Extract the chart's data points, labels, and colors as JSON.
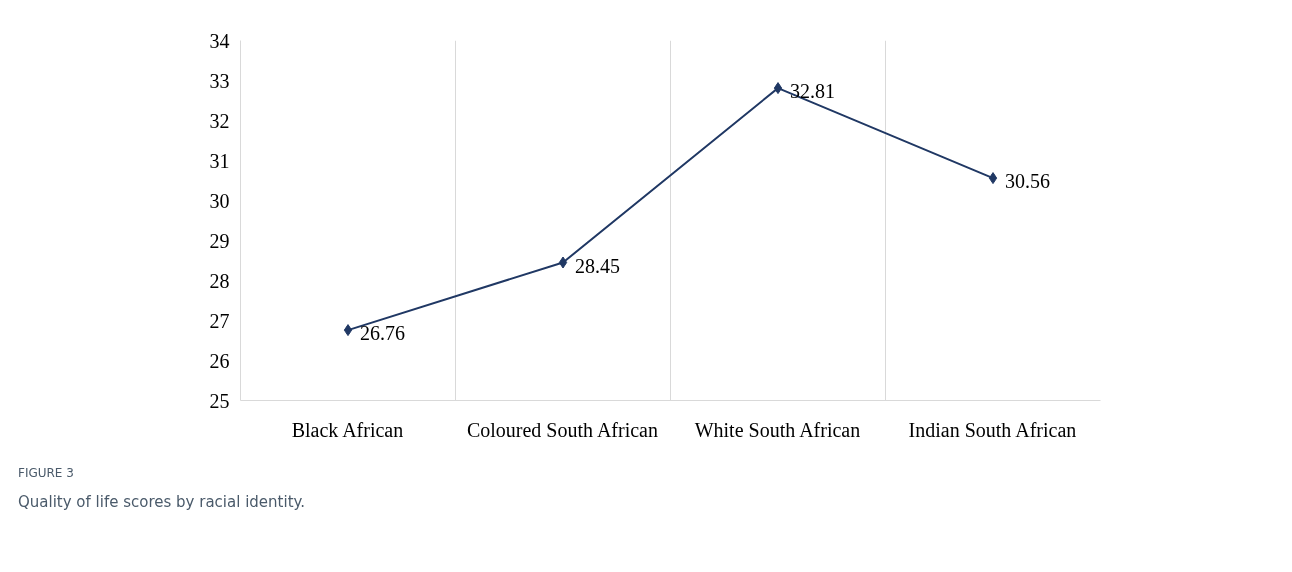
{
  "chart_data": {
    "type": "line",
    "categories": [
      "Black African",
      "Coloured South African",
      "White South African",
      "Indian South African"
    ],
    "series": [
      {
        "color": "#203864",
        "values": [
          26.76,
          28.45,
          32.81,
          30.56
        ]
      }
    ],
    "ylim": [
      25,
      34
    ],
    "yticks": [
      25,
      26,
      27,
      28,
      29,
      30,
      31,
      32,
      33,
      34
    ],
    "grid": "x",
    "marker": "diamond",
    "line_style": "solid",
    "data_labels": true,
    "annotations": [
      "FIGURE 3",
      "Quality of life scores by racial identity."
    ]
  }
}
